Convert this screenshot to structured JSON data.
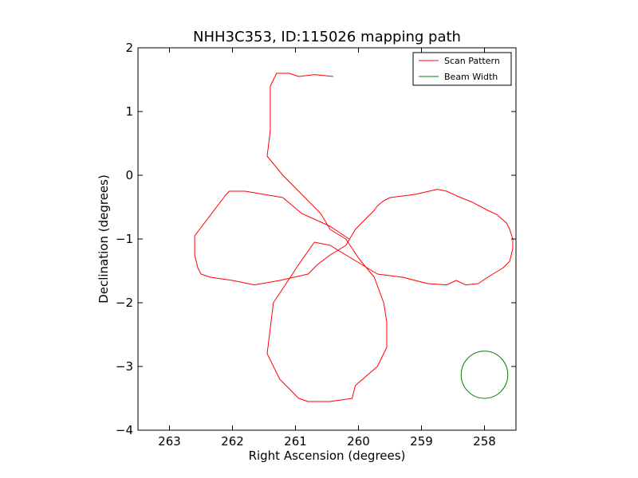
{
  "chart_data": {
    "type": "line",
    "title": "NHH3C353, ID:115026 mapping path",
    "xlabel": "Right Ascension (degrees)",
    "ylabel": "Declination (degrees)",
    "xlim": [
      263.5,
      257.5
    ],
    "ylim": [
      -4,
      2
    ],
    "x_ticks": [
      263,
      262,
      261,
      260,
      259,
      258
    ],
    "y_ticks": [
      2,
      1,
      0,
      -1,
      -2,
      -3,
      -4
    ],
    "x_tick_labels": [
      "263",
      "262",
      "261",
      "260",
      "259",
      "258"
    ],
    "y_tick_labels": [
      "2",
      "1",
      "0",
      "−1",
      "−2",
      "−3",
      "−4"
    ],
    "grid": false,
    "legend_position": "top-right",
    "series": [
      {
        "name": "Scan Pattern",
        "color": "#ff0000",
        "x": [
          260.15,
          260.45,
          260.9,
          261.2,
          261.8,
          262.05,
          262.1,
          262.6,
          262.6,
          262.55,
          262.5,
          262.35,
          262.0,
          261.65,
          261.25,
          260.8,
          260.65,
          260.45,
          260.2,
          260.05,
          259.85,
          259.75,
          259.7,
          259.6,
          259.5,
          259.1,
          258.75,
          258.6,
          258.45,
          258.2,
          257.95,
          257.8,
          257.65,
          257.6,
          257.55,
          257.55,
          257.6,
          257.7,
          257.95,
          258.1,
          258.3,
          258.45,
          258.6,
          258.9,
          259.3,
          259.7,
          259.95,
          260.2,
          260.45,
          260.7,
          260.95,
          261.15,
          261.35,
          261.4,
          261.45,
          261.25,
          260.95,
          260.8,
          260.45,
          260.1,
          260.05,
          259.7,
          259.55,
          259.55,
          259.6,
          259.75,
          260.0,
          260.2,
          260.45,
          260.6,
          260.9,
          261.2,
          261.45,
          261.4,
          261.4,
          261.4,
          261.3,
          261.1,
          260.95,
          260.7,
          260.4
        ],
        "y": [
          -1.0,
          -0.8,
          -0.6,
          -0.35,
          -0.25,
          -0.25,
          -0.3,
          -0.95,
          -1.25,
          -1.45,
          -1.55,
          -1.6,
          -1.65,
          -1.72,
          -1.65,
          -1.55,
          -1.4,
          -1.25,
          -1.1,
          -0.85,
          -0.65,
          -0.55,
          -0.48,
          -0.4,
          -0.35,
          -0.3,
          -0.22,
          -0.25,
          -0.32,
          -0.42,
          -0.55,
          -0.62,
          -0.75,
          -0.85,
          -1.0,
          -1.15,
          -1.35,
          -1.45,
          -1.6,
          -1.7,
          -1.72,
          -1.65,
          -1.72,
          -1.7,
          -1.6,
          -1.55,
          -1.4,
          -1.25,
          -1.1,
          -1.05,
          -1.4,
          -1.7,
          -2.0,
          -2.4,
          -2.8,
          -3.2,
          -3.5,
          -3.55,
          -3.55,
          -3.5,
          -3.3,
          -3.0,
          -2.7,
          -2.3,
          -2.0,
          -1.6,
          -1.3,
          -1.0,
          -0.85,
          -0.6,
          -0.3,
          0.0,
          0.3,
          0.7,
          1.0,
          1.4,
          1.6,
          1.6,
          1.55,
          1.58,
          1.55
        ]
      },
      {
        "name": "Beam Width",
        "color": "#008000",
        "center": [
          258.0,
          -3.13
        ],
        "radius": 0.37
      }
    ]
  }
}
